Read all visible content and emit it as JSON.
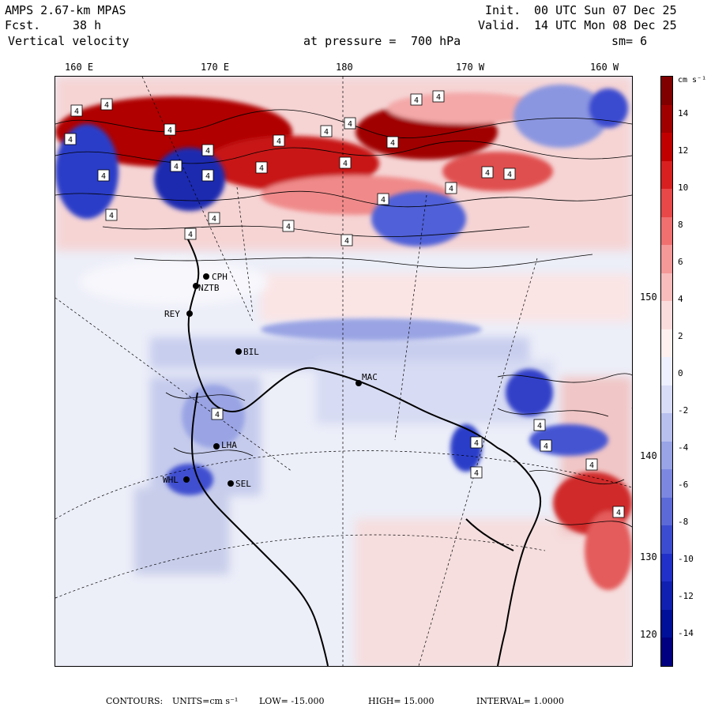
{
  "header": {
    "model": "AMPS 2.67-km MPAS",
    "forecast_label": "Fcst.",
    "forecast_hours": "38 h",
    "field": "Vertical velocity",
    "pressure_label": "at pressure =",
    "pressure_value": "700 hPa",
    "init_label": "Init.",
    "init_time": "00 UTC Sun 07 Dec 25",
    "valid_label": "Valid.",
    "valid_time": "14 UTC Mon 08 Dec 25",
    "smoothing": "sm= 6"
  },
  "longitude_labels": [
    "160 E",
    "170 E",
    "180",
    "170 W",
    "160 W"
  ],
  "latitude_labels": [
    "150 W",
    "140 W",
    "130 W",
    "120 W"
  ],
  "stations": [
    "CPH",
    "NZTB",
    "REY",
    "BIL",
    "MAC",
    "LHA",
    "WHL",
    "SEL"
  ],
  "map_markers": "4",
  "colorbar": {
    "units": "cm s⁻¹",
    "ticks": [
      "14",
      "12",
      "10",
      "8",
      "6",
      "4",
      "2",
      "0",
      "-2",
      "-4",
      "-6",
      "-8",
      "-10",
      "-12",
      "-14"
    ],
    "colors": [
      "#800000",
      "#a00000",
      "#c00000",
      "#d82020",
      "#e84848",
      "#f07070",
      "#f59898",
      "#f8bcbc",
      "#fbdcdc",
      "#fff0f0",
      "#eef0ff",
      "#d8dcf6",
      "#b8c0ee",
      "#98a4e6",
      "#7c88e0",
      "#5c6ad8",
      "#3c4cd0",
      "#2030c8",
      "#1020b0",
      "#001098",
      "#000080"
    ]
  },
  "footer": {
    "contours_label": "CONTOURS:",
    "units": "UNITS=cm s⁻¹",
    "low": "LOW= -15.000",
    "high": "HIGH= 15.000",
    "interval": "INTERVAL= 1.0000"
  }
}
